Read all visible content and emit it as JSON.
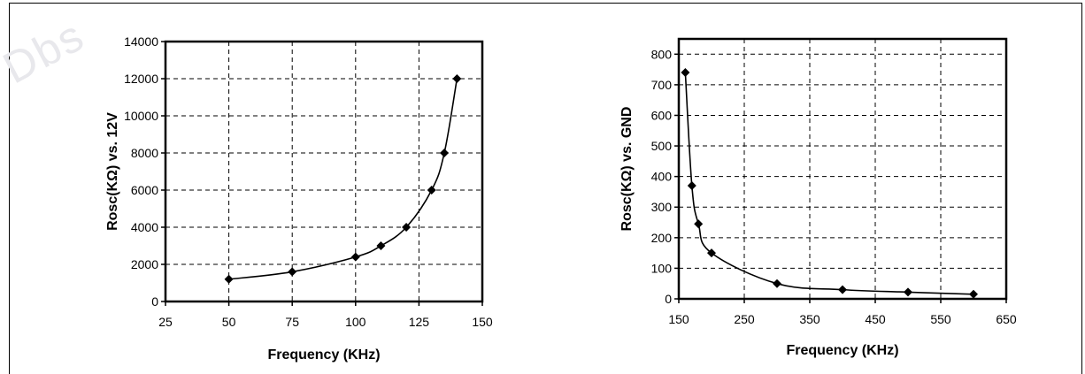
{
  "chart_data": [
    {
      "type": "line",
      "title": "",
      "xlabel": "Frequency (KHz)",
      "ylabel": "Rosc(KΩ) vs. 12V",
      "xlim": [
        25,
        150
      ],
      "ylim": [
        0,
        14000
      ],
      "xticks": [
        25,
        50,
        75,
        100,
        125,
        150
      ],
      "yticks": [
        0,
        2000,
        4000,
        6000,
        8000,
        10000,
        12000,
        14000
      ],
      "grid": true,
      "series": [
        {
          "x": [
            50,
            75,
            100,
            110,
            120,
            130,
            135,
            140
          ],
          "y": [
            1200,
            1600,
            2400,
            3000,
            4000,
            6000,
            8000,
            12000
          ]
        }
      ]
    },
    {
      "type": "line",
      "title": "",
      "xlabel": "Frequency (KHz)",
      "ylabel": "Rosc(KΩ) vs. GND",
      "xlim": [
        150,
        650
      ],
      "ylim": [
        0,
        850
      ],
      "xticks": [
        150,
        250,
        350,
        450,
        550,
        650
      ],
      "yticks": [
        0,
        100,
        200,
        300,
        400,
        500,
        600,
        700,
        800
      ],
      "grid": true,
      "series": [
        {
          "x": [
            160,
            170,
            180,
            200,
            300,
            400,
            500,
            600
          ],
          "y": [
            740,
            370,
            245,
            150,
            50,
            30,
            22,
            15
          ]
        }
      ]
    }
  ]
}
